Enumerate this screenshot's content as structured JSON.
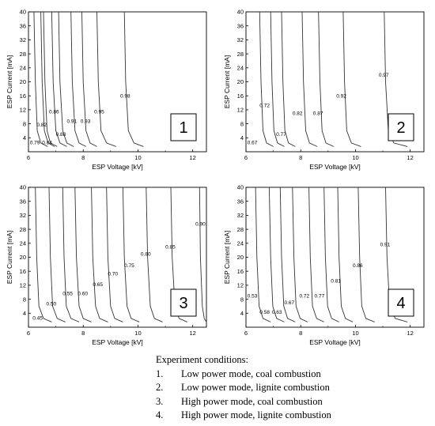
{
  "chart_data": [
    {
      "type": "line",
      "xlabel": "ESP Voltage [kV]",
      "ylabel": "ESP Current [mA]",
      "xlim": [
        6,
        12.5
      ],
      "ylim": [
        0,
        40
      ],
      "x_ticks": [
        "6",
        "8",
        "10",
        "12"
      ],
      "y_ticks": [
        "4",
        "8",
        "12",
        "16",
        "20",
        "24",
        "28",
        "32",
        "36",
        "40"
      ],
      "panel_number": "1",
      "series": [
        {
          "label": "0.79",
          "x": [
            6.2,
            6.25,
            6.32,
            6.45,
            6.7
          ],
          "y": [
            40,
            20,
            6,
            2.5,
            1.5
          ],
          "label_pos": [
            6.05,
            2.2
          ]
        },
        {
          "label": "0.84",
          "x": [
            6.55,
            6.6,
            6.68,
            6.8,
            7.05
          ],
          "y": [
            40,
            20,
            6,
            2.5,
            1.5
          ],
          "label_pos": [
            6.5,
            2.2
          ]
        },
        {
          "label": "0.82",
          "x": [
            6.45,
            6.5,
            6.58,
            6.72,
            6.95
          ],
          "y": [
            40,
            20,
            6,
            2.5,
            1.5
          ],
          "label_pos": [
            6.3,
            7.2
          ]
        },
        {
          "label": "0.86",
          "x": [
            6.85,
            6.9,
            7.0,
            7.15,
            7.4
          ],
          "y": [
            40,
            20,
            6,
            2.5,
            1.5
          ],
          "label_pos": [
            6.75,
            11
          ]
        },
        {
          "label": "0.88",
          "x": [
            7.1,
            7.15,
            7.25,
            7.4,
            7.65
          ],
          "y": [
            40,
            20,
            6,
            2.5,
            1.5
          ],
          "label_pos": [
            7.0,
            4.5
          ]
        },
        {
          "label": "0.91",
          "x": [
            7.55,
            7.6,
            7.7,
            7.85,
            8.1
          ],
          "y": [
            40,
            20,
            6,
            2.5,
            1.5
          ],
          "label_pos": [
            7.4,
            8.2
          ]
        },
        {
          "label": "0.93",
          "x": [
            7.95,
            8.0,
            8.1,
            8.25,
            8.5
          ],
          "y": [
            40,
            20,
            6,
            2.5,
            1.5
          ],
          "label_pos": [
            7.9,
            8.2
          ]
        },
        {
          "label": "0.95",
          "x": [
            8.5,
            8.55,
            8.65,
            8.85,
            9.2
          ],
          "y": [
            40,
            20,
            6,
            2.5,
            1.5
          ],
          "label_pos": [
            8.4,
            11
          ]
        },
        {
          "label": "0.98",
          "x": [
            9.5,
            9.55,
            9.65,
            9.85,
            10.2
          ],
          "y": [
            40,
            20,
            6,
            2.5,
            1.5
          ],
          "label_pos": [
            9.35,
            15.5
          ]
        }
      ]
    },
    {
      "type": "line",
      "xlabel": "ESP Voltage [kV]",
      "ylabel": "ESP Current [mA]",
      "xlim": [
        6,
        12.5
      ],
      "ylim": [
        0,
        40
      ],
      "x_ticks": [
        "6",
        "8",
        "10",
        "12"
      ],
      "y_ticks": [
        "4",
        "8",
        "12",
        "16",
        "20",
        "24",
        "28",
        "32",
        "36",
        "40"
      ],
      "panel_number": "2",
      "series": [
        {
          "label": "0.67",
          "x": [
            6.5,
            6.55,
            6.62,
            6.75,
            7.0
          ],
          "y": [
            40,
            20,
            6,
            2.5,
            1.5
          ],
          "label_pos": [
            6.05,
            2.2
          ]
        },
        {
          "label": "0.72",
          "x": [
            6.9,
            6.95,
            7.02,
            7.15,
            7.4
          ],
          "y": [
            40,
            20,
            6,
            2.5,
            1.5
          ],
          "label_pos": [
            6.5,
            12.8
          ]
        },
        {
          "label": "0.77",
          "x": [
            7.3,
            7.35,
            7.42,
            7.55,
            7.8
          ],
          "y": [
            40,
            20,
            6,
            2.5,
            1.5
          ],
          "label_pos": [
            7.1,
            4.5
          ]
        },
        {
          "label": "0.82",
          "x": [
            8.05,
            8.1,
            8.18,
            8.32,
            8.6
          ],
          "y": [
            40,
            20,
            6,
            2.5,
            1.5
          ],
          "label_pos": [
            7.7,
            10.5
          ]
        },
        {
          "label": "0.87",
          "x": [
            8.65,
            8.7,
            8.78,
            8.92,
            9.2
          ],
          "y": [
            40,
            20,
            6,
            2.5,
            1.5
          ],
          "label_pos": [
            8.45,
            10.5
          ]
        },
        {
          "label": "0.92",
          "x": [
            9.55,
            9.6,
            9.68,
            9.85,
            10.2
          ],
          "y": [
            40,
            20,
            6,
            2.5,
            1.5
          ],
          "label_pos": [
            9.3,
            15.5
          ]
        },
        {
          "label": "0.97",
          "x": [
            11.05,
            11.1,
            11.2,
            11.4,
            11.9
          ],
          "y": [
            40,
            20,
            6,
            2.5,
            1.5
          ],
          "label_pos": [
            10.85,
            21.5
          ]
        }
      ]
    },
    {
      "type": "line",
      "xlabel": "ESP Voltage [kV]",
      "ylabel": "ESP Current [mA]",
      "xlim": [
        6,
        12.5
      ],
      "ylim": [
        0,
        40
      ],
      "x_ticks": [
        "6",
        "8",
        "10",
        "12"
      ],
      "y_ticks": [
        "4",
        "8",
        "12",
        "16",
        "20",
        "24",
        "28",
        "32",
        "36",
        "40"
      ],
      "panel_number": "3",
      "series": [
        {
          "label": "0.45",
          "x": [
            6.25,
            6.3,
            6.38,
            6.55,
            6.85
          ],
          "y": [
            40,
            20,
            6,
            2.5,
            1.5
          ],
          "label_pos": [
            6.15,
            2.2
          ]
        },
        {
          "label": "0.50",
          "x": [
            6.75,
            6.8,
            6.88,
            7.05,
            7.35
          ],
          "y": [
            40,
            20,
            6,
            2.5,
            1.5
          ],
          "label_pos": [
            6.65,
            6.2
          ]
        },
        {
          "label": "0.55",
          "x": [
            7.25,
            7.3,
            7.38,
            7.55,
            7.85
          ],
          "y": [
            40,
            20,
            6,
            2.5,
            1.5
          ],
          "label_pos": [
            7.25,
            9.2
          ]
        },
        {
          "label": "0.60",
          "x": [
            7.7,
            7.75,
            7.85,
            8.0,
            8.3
          ],
          "y": [
            40,
            20,
            6,
            2.5,
            1.5
          ],
          "label_pos": [
            7.8,
            9.2
          ]
        },
        {
          "label": "0.65",
          "x": [
            8.3,
            8.35,
            8.45,
            8.6,
            8.9
          ],
          "y": [
            40,
            20,
            6,
            2.5,
            1.5
          ],
          "label_pos": [
            8.35,
            11.8
          ]
        },
        {
          "label": "0.70",
          "x": [
            8.85,
            8.9,
            9.0,
            9.15,
            9.45
          ],
          "y": [
            40,
            20,
            6,
            2.5,
            1.5
          ],
          "label_pos": [
            8.9,
            14.8
          ]
        },
        {
          "label": "0.75",
          "x": [
            9.45,
            9.5,
            9.6,
            9.75,
            10.05
          ],
          "y": [
            40,
            20,
            6,
            2.5,
            1.5
          ],
          "label_pos": [
            9.5,
            17.2
          ]
        },
        {
          "label": "0.80",
          "x": [
            10.3,
            10.35,
            10.45,
            10.6,
            10.9
          ],
          "y": [
            40,
            20,
            6,
            2.5,
            1.5
          ],
          "label_pos": [
            10.1,
            20.5
          ]
        },
        {
          "label": "0.85",
          "x": [
            11.2,
            11.25,
            11.35,
            11.5,
            11.8
          ],
          "y": [
            40,
            20,
            6,
            2.5,
            1.5
          ],
          "label_pos": [
            11.0,
            22.5
          ]
        },
        {
          "label": "0.90",
          "x": [
            12.25,
            12.28,
            12.35,
            12.42,
            12.5
          ],
          "y": [
            40,
            20,
            6,
            2.5,
            1.5
          ],
          "label_pos": [
            12.1,
            29
          ]
        }
      ]
    },
    {
      "type": "line",
      "xlabel": "ESP Voltage [kV]",
      "ylabel": "ESP Current [mA]",
      "xlim": [
        6,
        12.5
      ],
      "ylim": [
        0,
        40
      ],
      "x_ticks": [
        "6",
        "8",
        "10",
        "12"
      ],
      "y_ticks": [
        "4",
        "8",
        "12",
        "16",
        "20",
        "24",
        "28",
        "32",
        "36",
        "40"
      ],
      "panel_number": "4",
      "series": [
        {
          "label": "0.53",
          "x": [
            6.35,
            6.4,
            6.48,
            6.62,
            6.9
          ],
          "y": [
            40,
            20,
            6,
            2.5,
            1.5
          ],
          "label_pos": [
            6.05,
            8.5
          ]
        },
        {
          "label": "0.58",
          "x": [
            6.85,
            6.9,
            6.98,
            7.12,
            7.4
          ],
          "y": [
            40,
            20,
            6,
            2.5,
            1.5
          ],
          "label_pos": [
            6.5,
            3.8
          ]
        },
        {
          "label": "0.63",
          "x": [
            7.25,
            7.3,
            7.38,
            7.52,
            7.8
          ],
          "y": [
            40,
            20,
            6,
            2.5,
            1.5
          ],
          "label_pos": [
            6.95,
            3.8
          ]
        },
        {
          "label": "0.67",
          "x": [
            7.7,
            7.75,
            7.83,
            7.98,
            8.25
          ],
          "y": [
            40,
            20,
            6,
            2.5,
            1.5
          ],
          "label_pos": [
            7.4,
            6.5
          ]
        },
        {
          "label": "0.72",
          "x": [
            8.3,
            8.35,
            8.43,
            8.58,
            8.85
          ],
          "y": [
            40,
            20,
            6,
            2.5,
            1.5
          ],
          "label_pos": [
            7.95,
            8.5
          ]
        },
        {
          "label": "0.77",
          "x": [
            8.85,
            8.9,
            8.98,
            9.13,
            9.4
          ],
          "y": [
            40,
            20,
            6,
            2.5,
            1.5
          ],
          "label_pos": [
            8.5,
            8.5
          ]
        },
        {
          "label": "0.81",
          "x": [
            9.35,
            9.4,
            9.48,
            9.63,
            9.9
          ],
          "y": [
            40,
            20,
            6,
            2.5,
            1.5
          ],
          "label_pos": [
            9.1,
            12.8
          ]
        },
        {
          "label": "0.86",
          "x": [
            10.1,
            10.15,
            10.23,
            10.38,
            10.7
          ],
          "y": [
            40,
            20,
            6,
            2.5,
            1.5
          ],
          "label_pos": [
            9.9,
            17.2
          ]
        },
        {
          "label": "0.91",
          "x": [
            11.1,
            11.15,
            11.25,
            11.45,
            11.9
          ],
          "y": [
            40,
            20,
            6,
            2.5,
            1.5
          ],
          "label_pos": [
            10.9,
            23.2
          ]
        }
      ]
    }
  ],
  "conditions": {
    "title": "Experiment conditions:",
    "items": [
      {
        "num": "1.",
        "text": "Low power mode, coal combustion"
      },
      {
        "num": "2.",
        "text": "Low power mode, lignite  combustion"
      },
      {
        "num": "3.",
        "text": "High power mode, coal combustion"
      },
      {
        "num": "4.",
        "text": "High power mode, lignite  combustion"
      }
    ]
  }
}
